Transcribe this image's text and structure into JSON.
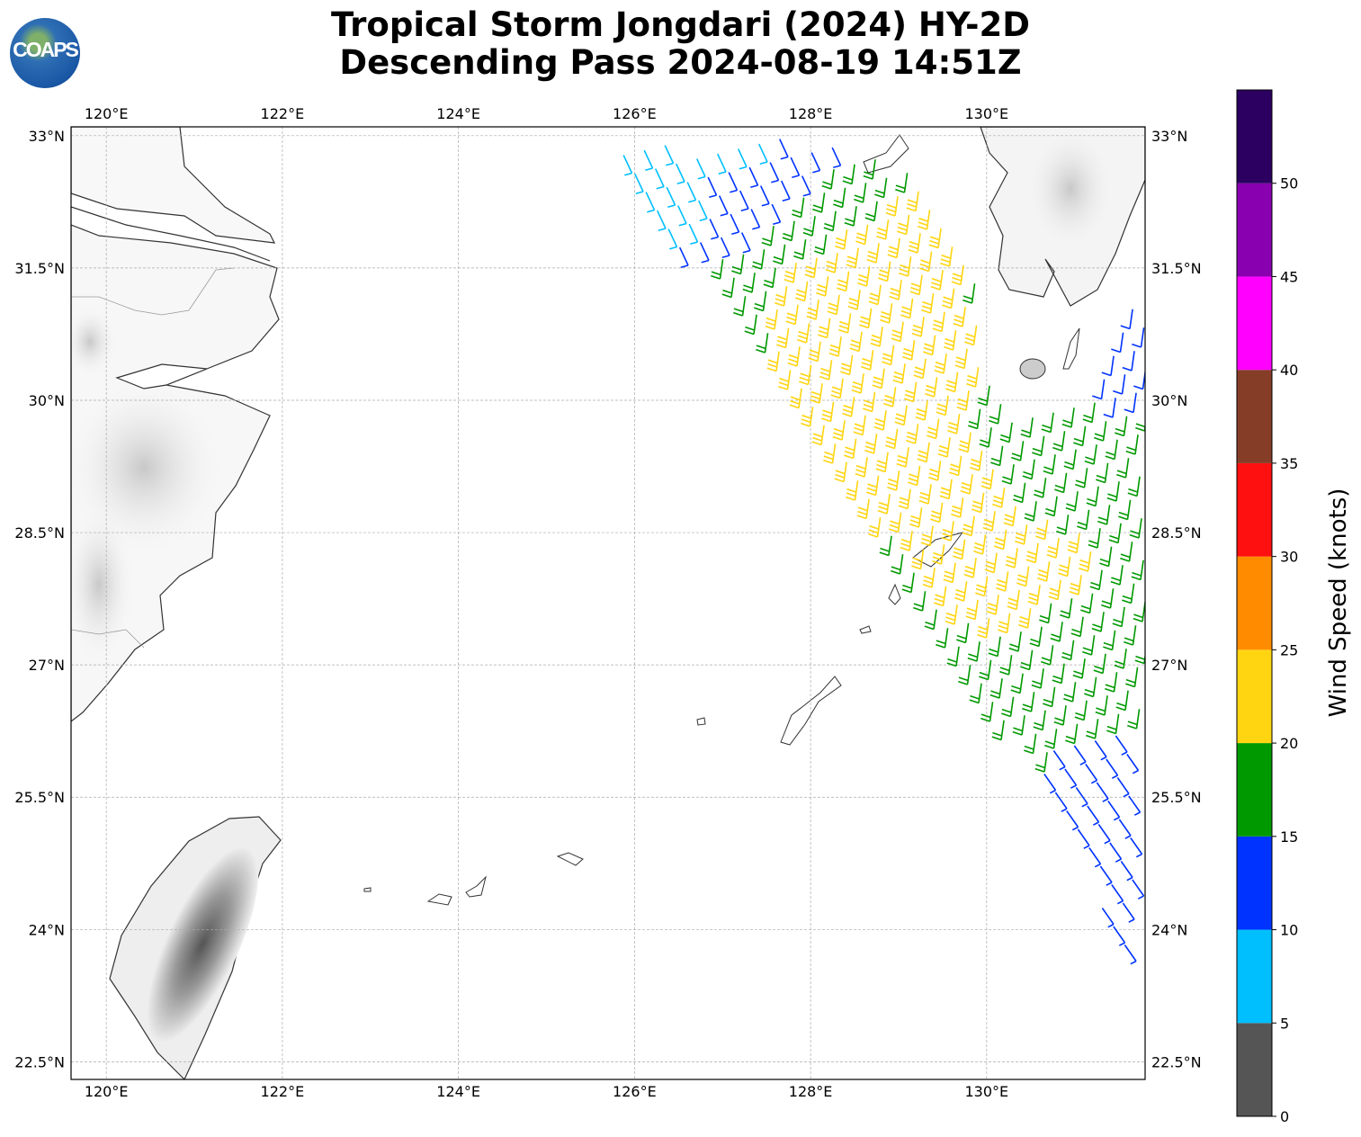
{
  "title": {
    "line1": "Tropical Storm Jongdari (2024) HY-2D",
    "line2": "Descending Pass 2024-08-19 14:51Z"
  },
  "logo": {
    "text": "COAPS"
  },
  "map": {
    "projection": "plate-carree",
    "lon_range": [
      119.6,
      131.8
    ],
    "lat_range": [
      22.3,
      33.1
    ],
    "gridlines": true,
    "lon_ticks": [
      "120°E",
      "122°E",
      "124°E",
      "126°E",
      "128°E",
      "130°E"
    ],
    "lat_ticks": [
      "33°N",
      "31.5°N",
      "30°N",
      "28.5°N",
      "27°N",
      "25.5°N",
      "24°N",
      "22.5°N"
    ],
    "layers": [
      "coastlines",
      "terrain-shading",
      "wind-barbs"
    ]
  },
  "colorbar": {
    "label": "Wind Speed (knots)",
    "ticks": [
      "0",
      "5",
      "10",
      "15",
      "20",
      "25",
      "30",
      "35",
      "40",
      "45",
      "50"
    ],
    "range": [
      0,
      55
    ],
    "bins": [
      {
        "from": 0,
        "to": 5,
        "color": "#555555"
      },
      {
        "from": 5,
        "to": 10,
        "color": "#00bfff"
      },
      {
        "from": 10,
        "to": 15,
        "color": "#0033ff"
      },
      {
        "from": 15,
        "to": 20,
        "color": "#009900"
      },
      {
        "from": 20,
        "to": 25,
        "color": "#ffd511"
      },
      {
        "from": 25,
        "to": 30,
        "color": "#ff8c00"
      },
      {
        "from": 30,
        "to": 35,
        "color": "#ff1010"
      },
      {
        "from": 35,
        "to": 40,
        "color": "#853d27"
      },
      {
        "from": 40,
        "to": 45,
        "color": "#ff00ff"
      },
      {
        "from": 45,
        "to": 50,
        "color": "#8800b0"
      },
      {
        "from": 50,
        "to": 55,
        "color": "#2c0060"
      }
    ]
  }
}
